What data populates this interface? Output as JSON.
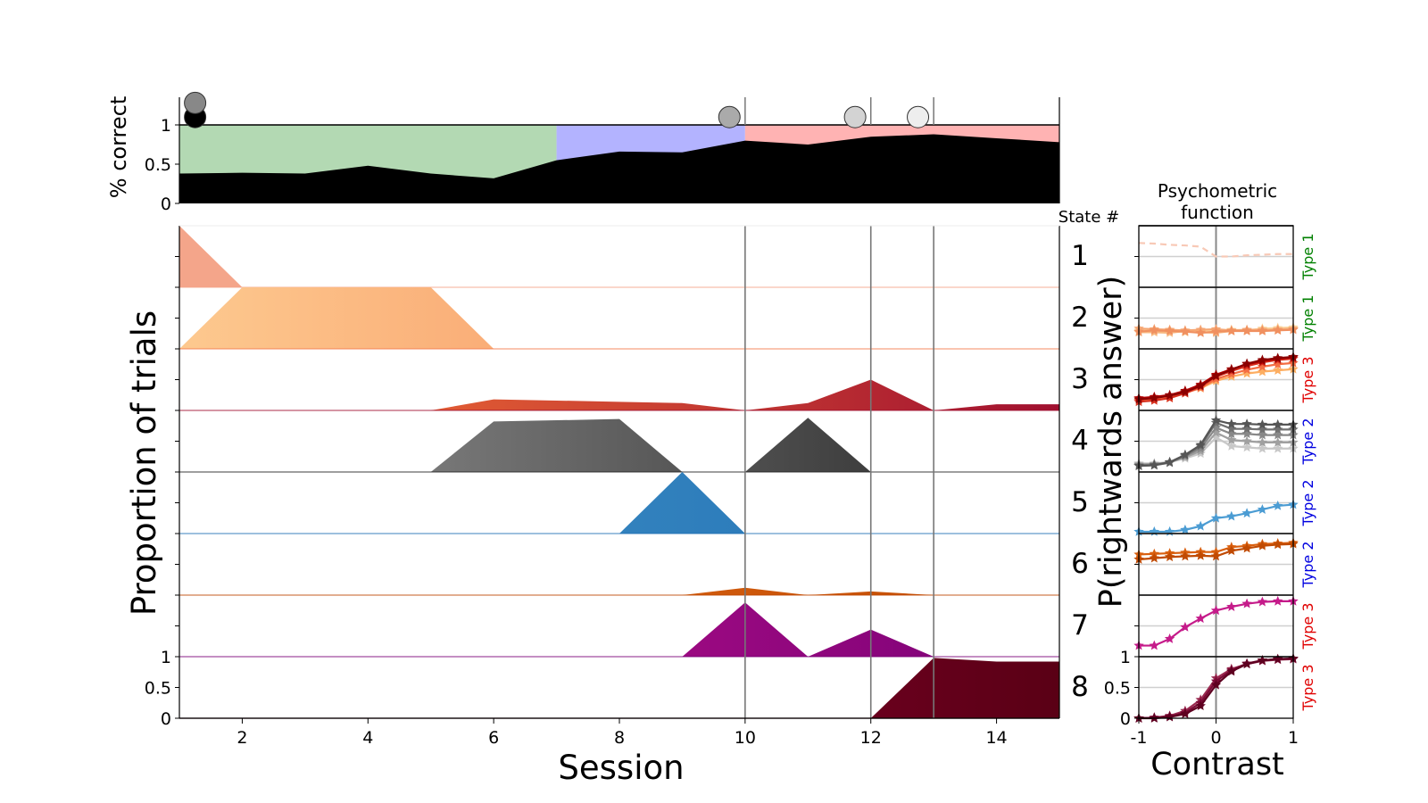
{
  "chart_data": [
    {
      "type": "area",
      "ylabel": "% correct",
      "x": [
        1,
        2,
        3,
        4,
        5,
        6,
        7,
        8,
        9,
        10,
        11,
        12,
        13,
        14,
        15
      ],
      "series": [
        {
          "values": [
            0.38,
            0.39,
            0.38,
            0.48,
            0.38,
            0.32,
            0.55,
            0.66,
            0.65,
            0.8,
            0.75,
            0.85,
            0.88,
            0.83,
            0.78
          ]
        }
      ],
      "phase_bands": [
        {
          "x0": 1,
          "x1": 7,
          "color": "#b3d9b3"
        },
        {
          "x0": 7,
          "x1": 10,
          "color": "#b3b3ff"
        },
        {
          "x0": 10,
          "x1": 15,
          "color": "#ffb3b3"
        }
      ],
      "markers": [
        {
          "x": 1.25,
          "y": 1.1,
          "color": "#000000"
        },
        {
          "x": 1.25,
          "y": 1.28,
          "color": "#888888"
        },
        {
          "x": 9.75,
          "y": 1.1,
          "color": "#aaaaaa"
        },
        {
          "x": 11.75,
          "y": 1.1,
          "color": "#d3d3d3"
        },
        {
          "x": 12.75,
          "y": 1.1,
          "color": "#eeeeee"
        }
      ],
      "yticks": [
        {
          "v": 0,
          "label": "0"
        },
        {
          "v": 0.5,
          "label": "0.5"
        },
        {
          "v": 1,
          "label": "1"
        }
      ],
      "xlim": [
        1,
        15
      ],
      "ylim": [
        0,
        1.35
      ],
      "vlines": [
        10,
        12,
        13
      ]
    },
    {
      "type": "area",
      "xlabel": "Session",
      "ylabel": "Proportion of trials",
      "state_header": "State #",
      "x": [
        1,
        2,
        3,
        4,
        5,
        6,
        7,
        8,
        9,
        10,
        11,
        12,
        13,
        14,
        15
      ],
      "xticks": [
        {
          "v": 2,
          "label": "2"
        },
        {
          "v": 4,
          "label": "4"
        },
        {
          "v": 6,
          "label": "6"
        },
        {
          "v": 8,
          "label": "8"
        },
        {
          "v": 10,
          "label": "10"
        },
        {
          "v": 12,
          "label": "12"
        },
        {
          "v": 14,
          "label": "14"
        }
      ],
      "yticks": [
        {
          "v": 0,
          "label": "0"
        },
        {
          "v": 0.5,
          "label": "0.5"
        },
        {
          "v": 1,
          "label": "1"
        }
      ],
      "xlim": [
        1,
        15
      ],
      "vlines": [
        10,
        12,
        13
      ],
      "series": [
        {
          "label": "1",
          "colors": [
            "#f4a58a",
            "#f4a58a"
          ],
          "values": [
            1,
            0,
            0,
            0,
            0,
            0,
            0,
            0,
            0,
            0,
            0,
            0,
            0,
            0,
            0
          ]
        },
        {
          "label": "2",
          "colors": [
            "#fdc98f",
            "#f47c4d"
          ],
          "values": [
            0,
            1,
            1,
            1,
            1,
            0,
            0,
            0,
            0,
            0,
            0,
            0,
            0,
            0,
            0
          ]
        },
        {
          "label": "3",
          "colors": [
            "#fb7a35",
            "#a01030"
          ],
          "values": [
            0,
            0,
            0,
            0,
            0,
            0.18,
            0.16,
            0.14,
            0.12,
            0,
            0.12,
            0.5,
            0,
            0.1,
            0.1
          ]
        },
        {
          "label": "4",
          "colors": [
            "#999999",
            "#252525"
          ],
          "values": [
            0,
            0,
            0,
            0,
            0,
            0.82,
            0.84,
            0.86,
            0,
            0,
            0.88,
            0,
            0,
            0,
            0
          ]
        },
        {
          "label": "5",
          "colors": [
            "#4292c6",
            "#2271b5"
          ],
          "values": [
            0,
            0,
            0,
            0,
            0,
            0,
            0,
            0,
            1,
            0,
            0,
            0,
            0,
            0,
            0
          ]
        },
        {
          "label": "6",
          "colors": [
            "#e6701a",
            "#c04a02"
          ],
          "values": [
            0,
            0,
            0,
            0,
            0,
            0,
            0,
            0,
            0,
            0.12,
            0,
            0.06,
            0,
            0,
            0
          ]
        },
        {
          "label": "7",
          "colors": [
            "#c7148e",
            "#7a0177"
          ],
          "values": [
            0,
            0,
            0,
            0,
            0,
            0,
            0,
            0,
            0,
            0.88,
            0,
            0.44,
            0,
            0,
            0
          ]
        },
        {
          "label": "8",
          "colors": [
            "#a0003c",
            "#5a0015"
          ],
          "values": [
            0,
            0,
            0,
            0,
            0,
            0,
            0,
            0,
            0,
            0,
            0,
            0,
            0.98,
            0.92,
            0.92
          ]
        }
      ]
    },
    {
      "type": "line",
      "title_lines": [
        "Psychometric",
        "function"
      ],
      "xlabel": "Contrast",
      "ylabel": "P(rightwards answer)",
      "xticks": [
        {
          "v": -1,
          "label": "-1"
        },
        {
          "v": 0,
          "label": "0"
        },
        {
          "v": 1,
          "label": "1"
        }
      ],
      "yticks": [
        {
          "v": 0,
          "label": "0"
        },
        {
          "v": 0.5,
          "label": "0.5"
        },
        {
          "v": 1,
          "label": "1"
        }
      ],
      "xlim": [
        -1,
        1
      ],
      "ylim": [
        0,
        1
      ],
      "x": [
        -1,
        -0.8,
        -0.6,
        -0.4,
        -0.2,
        0,
        0.2,
        0.4,
        0.6,
        0.8,
        1
      ],
      "rows": [
        {
          "type_label": "Type 1",
          "type_color": "#008000",
          "dashed": true,
          "curves": [
            {
              "color": "#f8c9b6",
              "values": [
                0.72,
                0.71,
                0.69,
                0.68,
                0.66,
                0.5,
                0.5,
                0.52,
                0.53,
                0.54,
                0.54
              ]
            }
          ]
        },
        {
          "type_label": "Type 1",
          "type_color": "#008000",
          "curves": [
            {
              "color": "#fbd6a0",
              "values": [
                0.3,
                0.29,
                0.3,
                0.27,
                0.29,
                0.29,
                0.31,
                0.3,
                0.33,
                0.34,
                0.35
              ]
            },
            {
              "color": "#f8b880",
              "values": [
                0.27,
                0.27,
                0.26,
                0.29,
                0.27,
                0.26,
                0.29,
                0.3,
                0.3,
                0.32,
                0.33
              ]
            },
            {
              "color": "#f5a673",
              "values": [
                0.33,
                0.32,
                0.31,
                0.3,
                0.31,
                0.32,
                0.3,
                0.31,
                0.31,
                0.31,
                0.32
              ]
            },
            {
              "color": "#f09060",
              "values": [
                0.28,
                0.3,
                0.29,
                0.28,
                0.26,
                0.28,
                0.29,
                0.29,
                0.29,
                0.3,
                0.31
              ]
            }
          ]
        },
        {
          "type_label": "Type 3",
          "type_color": "#e00000",
          "curves": [
            {
              "color": "#fdae61",
              "values": [
                0.18,
                0.2,
                0.22,
                0.29,
                0.36,
                0.48,
                0.55,
                0.6,
                0.63,
                0.65,
                0.67
              ]
            },
            {
              "color": "#f46d43",
              "values": [
                0.16,
                0.18,
                0.21,
                0.28,
                0.37,
                0.51,
                0.59,
                0.66,
                0.71,
                0.75,
                0.77
              ]
            },
            {
              "color": "#d7301f",
              "values": [
                0.14,
                0.16,
                0.2,
                0.28,
                0.39,
                0.55,
                0.64,
                0.72,
                0.78,
                0.82,
                0.84
              ]
            },
            {
              "color": "#b30000",
              "values": [
                0.2,
                0.22,
                0.25,
                0.32,
                0.42,
                0.58,
                0.67,
                0.75,
                0.8,
                0.84,
                0.86
              ]
            },
            {
              "color": "#8b0000",
              "values": [
                0.18,
                0.2,
                0.24,
                0.3,
                0.4,
                0.56,
                0.66,
                0.76,
                0.82,
                0.85,
                0.87
              ]
            }
          ]
        },
        {
          "type_label": "Type 2",
          "type_color": "#0000e0",
          "curves": [
            {
              "color": "#c8c8c8",
              "values": [
                0.14,
                0.14,
                0.16,
                0.22,
                0.3,
                0.56,
                0.42,
                0.4,
                0.38,
                0.38,
                0.38
              ]
            },
            {
              "color": "#a0a0a0",
              "values": [
                0.12,
                0.13,
                0.16,
                0.24,
                0.34,
                0.64,
                0.52,
                0.5,
                0.48,
                0.48,
                0.48
              ]
            },
            {
              "color": "#888888",
              "values": [
                0.12,
                0.12,
                0.16,
                0.26,
                0.38,
                0.72,
                0.62,
                0.62,
                0.6,
                0.6,
                0.6
              ]
            },
            {
              "color": "#707070",
              "values": [
                0.1,
                0.11,
                0.15,
                0.27,
                0.42,
                0.8,
                0.7,
                0.7,
                0.69,
                0.69,
                0.69
              ]
            },
            {
              "color": "#555555",
              "values": [
                0.1,
                0.11,
                0.16,
                0.28,
                0.44,
                0.84,
                0.78,
                0.78,
                0.77,
                0.77,
                0.77
              ]
            }
          ]
        },
        {
          "type_label": "Type 2",
          "type_color": "#0000e0",
          "curves": [
            {
              "color": "#4b9cd3",
              "values": [
                0.03,
                0.03,
                0.03,
                0.06,
                0.12,
                0.25,
                0.28,
                0.33,
                0.39,
                0.45,
                0.47
              ]
            }
          ]
        },
        {
          "type_label": "Type 2",
          "type_color": "#0000e0",
          "curves": [
            {
              "color": "#d95f0e",
              "values": [
                0.66,
                0.67,
                0.68,
                0.69,
                0.7,
                0.7,
                0.78,
                0.8,
                0.83,
                0.84,
                0.85
              ]
            },
            {
              "color": "#c04a02",
              "values": [
                0.58,
                0.6,
                0.62,
                0.63,
                0.64,
                0.63,
                0.72,
                0.76,
                0.8,
                0.82,
                0.83
              ]
            }
          ]
        },
        {
          "type_label": "Type 3",
          "type_color": "#e00000",
          "curves": [
            {
              "color": "#c51b8a",
              "values": [
                0.18,
                0.18,
                0.29,
                0.48,
                0.62,
                0.75,
                0.81,
                0.86,
                0.89,
                0.9,
                0.9
              ]
            }
          ]
        },
        {
          "type_label": "Type 3",
          "type_color": "#e00000",
          "curves": [
            {
              "color": "#9a2a50",
              "values": [
                0.0,
                0.01,
                0.04,
                0.12,
                0.3,
                0.65,
                0.8,
                0.88,
                0.93,
                0.95,
                0.96
              ]
            },
            {
              "color": "#7a0a35",
              "values": [
                0.0,
                0.01,
                0.03,
                0.09,
                0.25,
                0.6,
                0.78,
                0.89,
                0.94,
                0.96,
                0.97
              ]
            },
            {
              "color": "#5e0020",
              "values": [
                0.0,
                0.0,
                0.02,
                0.07,
                0.2,
                0.54,
                0.76,
                0.88,
                0.94,
                0.96,
                0.97
              ]
            }
          ]
        }
      ]
    }
  ]
}
